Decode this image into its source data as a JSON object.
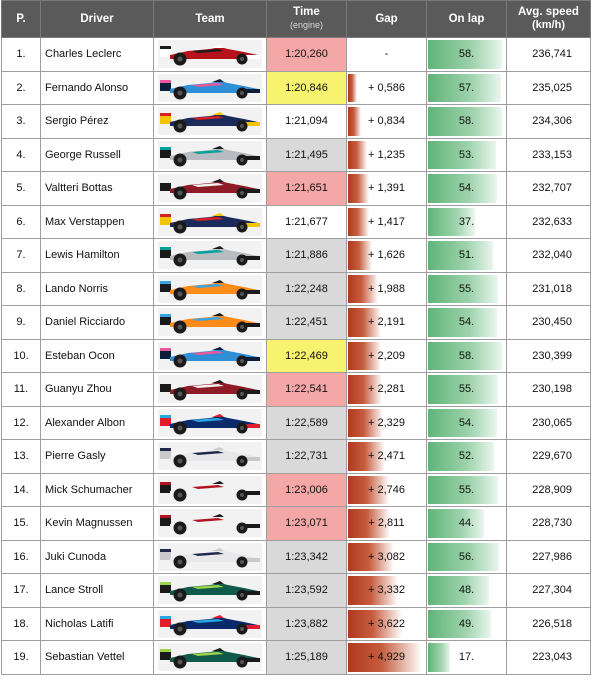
{
  "headers": {
    "pos": "P.",
    "driver": "Driver",
    "team": "Team",
    "time": "Time",
    "time_sub": "(engine)",
    "gap": "Gap",
    "on_lap": "On lap",
    "avg_speed": "Avg. speed",
    "avg_speed_sub": "(km/h)"
  },
  "colors": {
    "header_bg": "#5a5a5a",
    "time_red": "#f4a7a7",
    "time_yellow": "#f7f36e",
    "time_grey": "#d9d9d9",
    "gap_bar": "#b03a1e",
    "lap_bar": "#5fb477"
  },
  "max_gap": 4.929,
  "max_lap": 58,
  "rows": [
    {
      "pos": "1.",
      "driver": "Charles Leclerc",
      "team": "ferrari",
      "time": "1:20,260",
      "time_color": "red",
      "gap": "-",
      "gap_value": 0,
      "lap": "58.",
      "lap_value": 58,
      "speed": "236,741"
    },
    {
      "pos": "2.",
      "driver": "Fernando Alonso",
      "team": "alpine",
      "time": "1:20,846",
      "time_color": "yellow",
      "gap": "+ 0,586",
      "gap_value": 0.586,
      "lap": "57.",
      "lap_value": 57,
      "speed": "235,025"
    },
    {
      "pos": "3.",
      "driver": "Sergio Pérez",
      "team": "red-bull",
      "time": "1:21,094",
      "time_color": "white",
      "gap": "+ 0,834",
      "gap_value": 0.834,
      "lap": "58.",
      "lap_value": 58,
      "speed": "234,306"
    },
    {
      "pos": "4.",
      "driver": "George Russell",
      "team": "mercedes",
      "time": "1:21,495",
      "time_color": "grey",
      "gap": "+ 1,235",
      "gap_value": 1.235,
      "lap": "53.",
      "lap_value": 53,
      "speed": "233,153"
    },
    {
      "pos": "5.",
      "driver": "Valtteri Bottas",
      "team": "alfa-romeo",
      "time": "1:21,651",
      "time_color": "red",
      "gap": "+ 1,391",
      "gap_value": 1.391,
      "lap": "54.",
      "lap_value": 54,
      "speed": "232,707"
    },
    {
      "pos": "6.",
      "driver": "Max Verstappen",
      "team": "red-bull",
      "time": "1:21,677",
      "time_color": "white",
      "gap": "+ 1,417",
      "gap_value": 1.417,
      "lap": "37.",
      "lap_value": 37,
      "speed": "232,633"
    },
    {
      "pos": "7.",
      "driver": "Lewis Hamilton",
      "team": "mercedes",
      "time": "1:21,886",
      "time_color": "grey",
      "gap": "+ 1,626",
      "gap_value": 1.626,
      "lap": "51.",
      "lap_value": 51,
      "speed": "232,040"
    },
    {
      "pos": "8.",
      "driver": "Lando Norris",
      "team": "mclaren",
      "time": "1:22,248",
      "time_color": "grey",
      "gap": "+ 1,988",
      "gap_value": 1.988,
      "lap": "55.",
      "lap_value": 55,
      "speed": "231,018"
    },
    {
      "pos": "9.",
      "driver": "Daniel Ricciardo",
      "team": "mclaren",
      "time": "1:22,451",
      "time_color": "grey",
      "gap": "+ 2,191",
      "gap_value": 2.191,
      "lap": "54.",
      "lap_value": 54,
      "speed": "230,450"
    },
    {
      "pos": "10.",
      "driver": "Esteban Ocon",
      "team": "alpine",
      "time": "1:22,469",
      "time_color": "yellow",
      "gap": "+ 2,209",
      "gap_value": 2.209,
      "lap": "58.",
      "lap_value": 58,
      "speed": "230,399"
    },
    {
      "pos": "11.",
      "driver": "Guanyu Zhou",
      "team": "alfa-romeo",
      "time": "1:22,541",
      "time_color": "red",
      "gap": "+ 2,281",
      "gap_value": 2.281,
      "lap": "55.",
      "lap_value": 55,
      "speed": "230,198"
    },
    {
      "pos": "12.",
      "driver": "Alexander Albon",
      "team": "williams",
      "time": "1:22,589",
      "time_color": "grey",
      "gap": "+ 2,329",
      "gap_value": 2.329,
      "lap": "54.",
      "lap_value": 54,
      "speed": "230,065"
    },
    {
      "pos": "13.",
      "driver": "Pierre Gasly",
      "team": "alphatauri",
      "time": "1:22,731",
      "time_color": "grey",
      "gap": "+ 2,471",
      "gap_value": 2.471,
      "lap": "52.",
      "lap_value": 52,
      "speed": "229,670"
    },
    {
      "pos": "14.",
      "driver": "Mick Schumacher",
      "team": "haas",
      "time": "1:23,006",
      "time_color": "red",
      "gap": "+ 2,746",
      "gap_value": 2.746,
      "lap": "55.",
      "lap_value": 55,
      "speed": "228,909"
    },
    {
      "pos": "15.",
      "driver": "Kevin Magnussen",
      "team": "haas",
      "time": "1:23,071",
      "time_color": "red",
      "gap": "+ 2,811",
      "gap_value": 2.811,
      "lap": "44.",
      "lap_value": 44,
      "speed": "228,730"
    },
    {
      "pos": "16.",
      "driver": "Juki Cunoda",
      "team": "alphatauri",
      "time": "1:23,342",
      "time_color": "grey",
      "gap": "+ 3,082",
      "gap_value": 3.082,
      "lap": "56.",
      "lap_value": 56,
      "speed": "227,986"
    },
    {
      "pos": "17.",
      "driver": "Lance Stroll",
      "team": "aston-martin",
      "time": "1:23,592",
      "time_color": "grey",
      "gap": "+ 3,332",
      "gap_value": 3.332,
      "lap": "48.",
      "lap_value": 48,
      "speed": "227,304"
    },
    {
      "pos": "18.",
      "driver": "Nicholas Latifi",
      "team": "williams",
      "time": "1:23,882",
      "time_color": "grey",
      "gap": "+ 3,622",
      "gap_value": 3.622,
      "lap": "49.",
      "lap_value": 49,
      "speed": "226,518"
    },
    {
      "pos": "19.",
      "driver": "Sebastian Vettel",
      "team": "aston-martin",
      "time": "1:25,189",
      "time_color": "grey",
      "gap": "+ 4,929",
      "gap_value": 4.929,
      "lap": "17.",
      "lap_value": 17,
      "speed": "223,043"
    }
  ],
  "team_colors": {
    "ferrari": {
      "body": "#b5121b",
      "accent": "#1b1b1b",
      "stripe": "#ffffff"
    },
    "alpine": {
      "body": "#2f8fd6",
      "accent": "#e85a9c",
      "stripe": "#0b1f3a"
    },
    "red-bull": {
      "body": "#1c2a5a",
      "accent": "#d61f26",
      "stripe": "#f4c400"
    },
    "mercedes": {
      "body": "#b8bcc0",
      "accent": "#00a19b",
      "stripe": "#1a1a1a"
    },
    "alfa-romeo": {
      "body": "#8e1b25",
      "accent": "#f2f2f2",
      "stripe": "#1a1a1a"
    },
    "mclaren": {
      "body": "#ff8c1a",
      "accent": "#3aa3e0",
      "stripe": "#1a1a1a"
    },
    "williams": {
      "body": "#0b2a6b",
      "accent": "#28a8e0",
      "stripe": "#e21c2b"
    },
    "alphatauri": {
      "body": "#e8e8ea",
      "accent": "#1e2a4a",
      "stripe": "#c9c9cc"
    },
    "haas": {
      "body": "#f2f2f2",
      "accent": "#b0151f",
      "stripe": "#1a1a1a"
    },
    "aston-martin": {
      "body": "#0f5a4a",
      "accent": "#9ed34a",
      "stripe": "#1a1a1a"
    }
  }
}
